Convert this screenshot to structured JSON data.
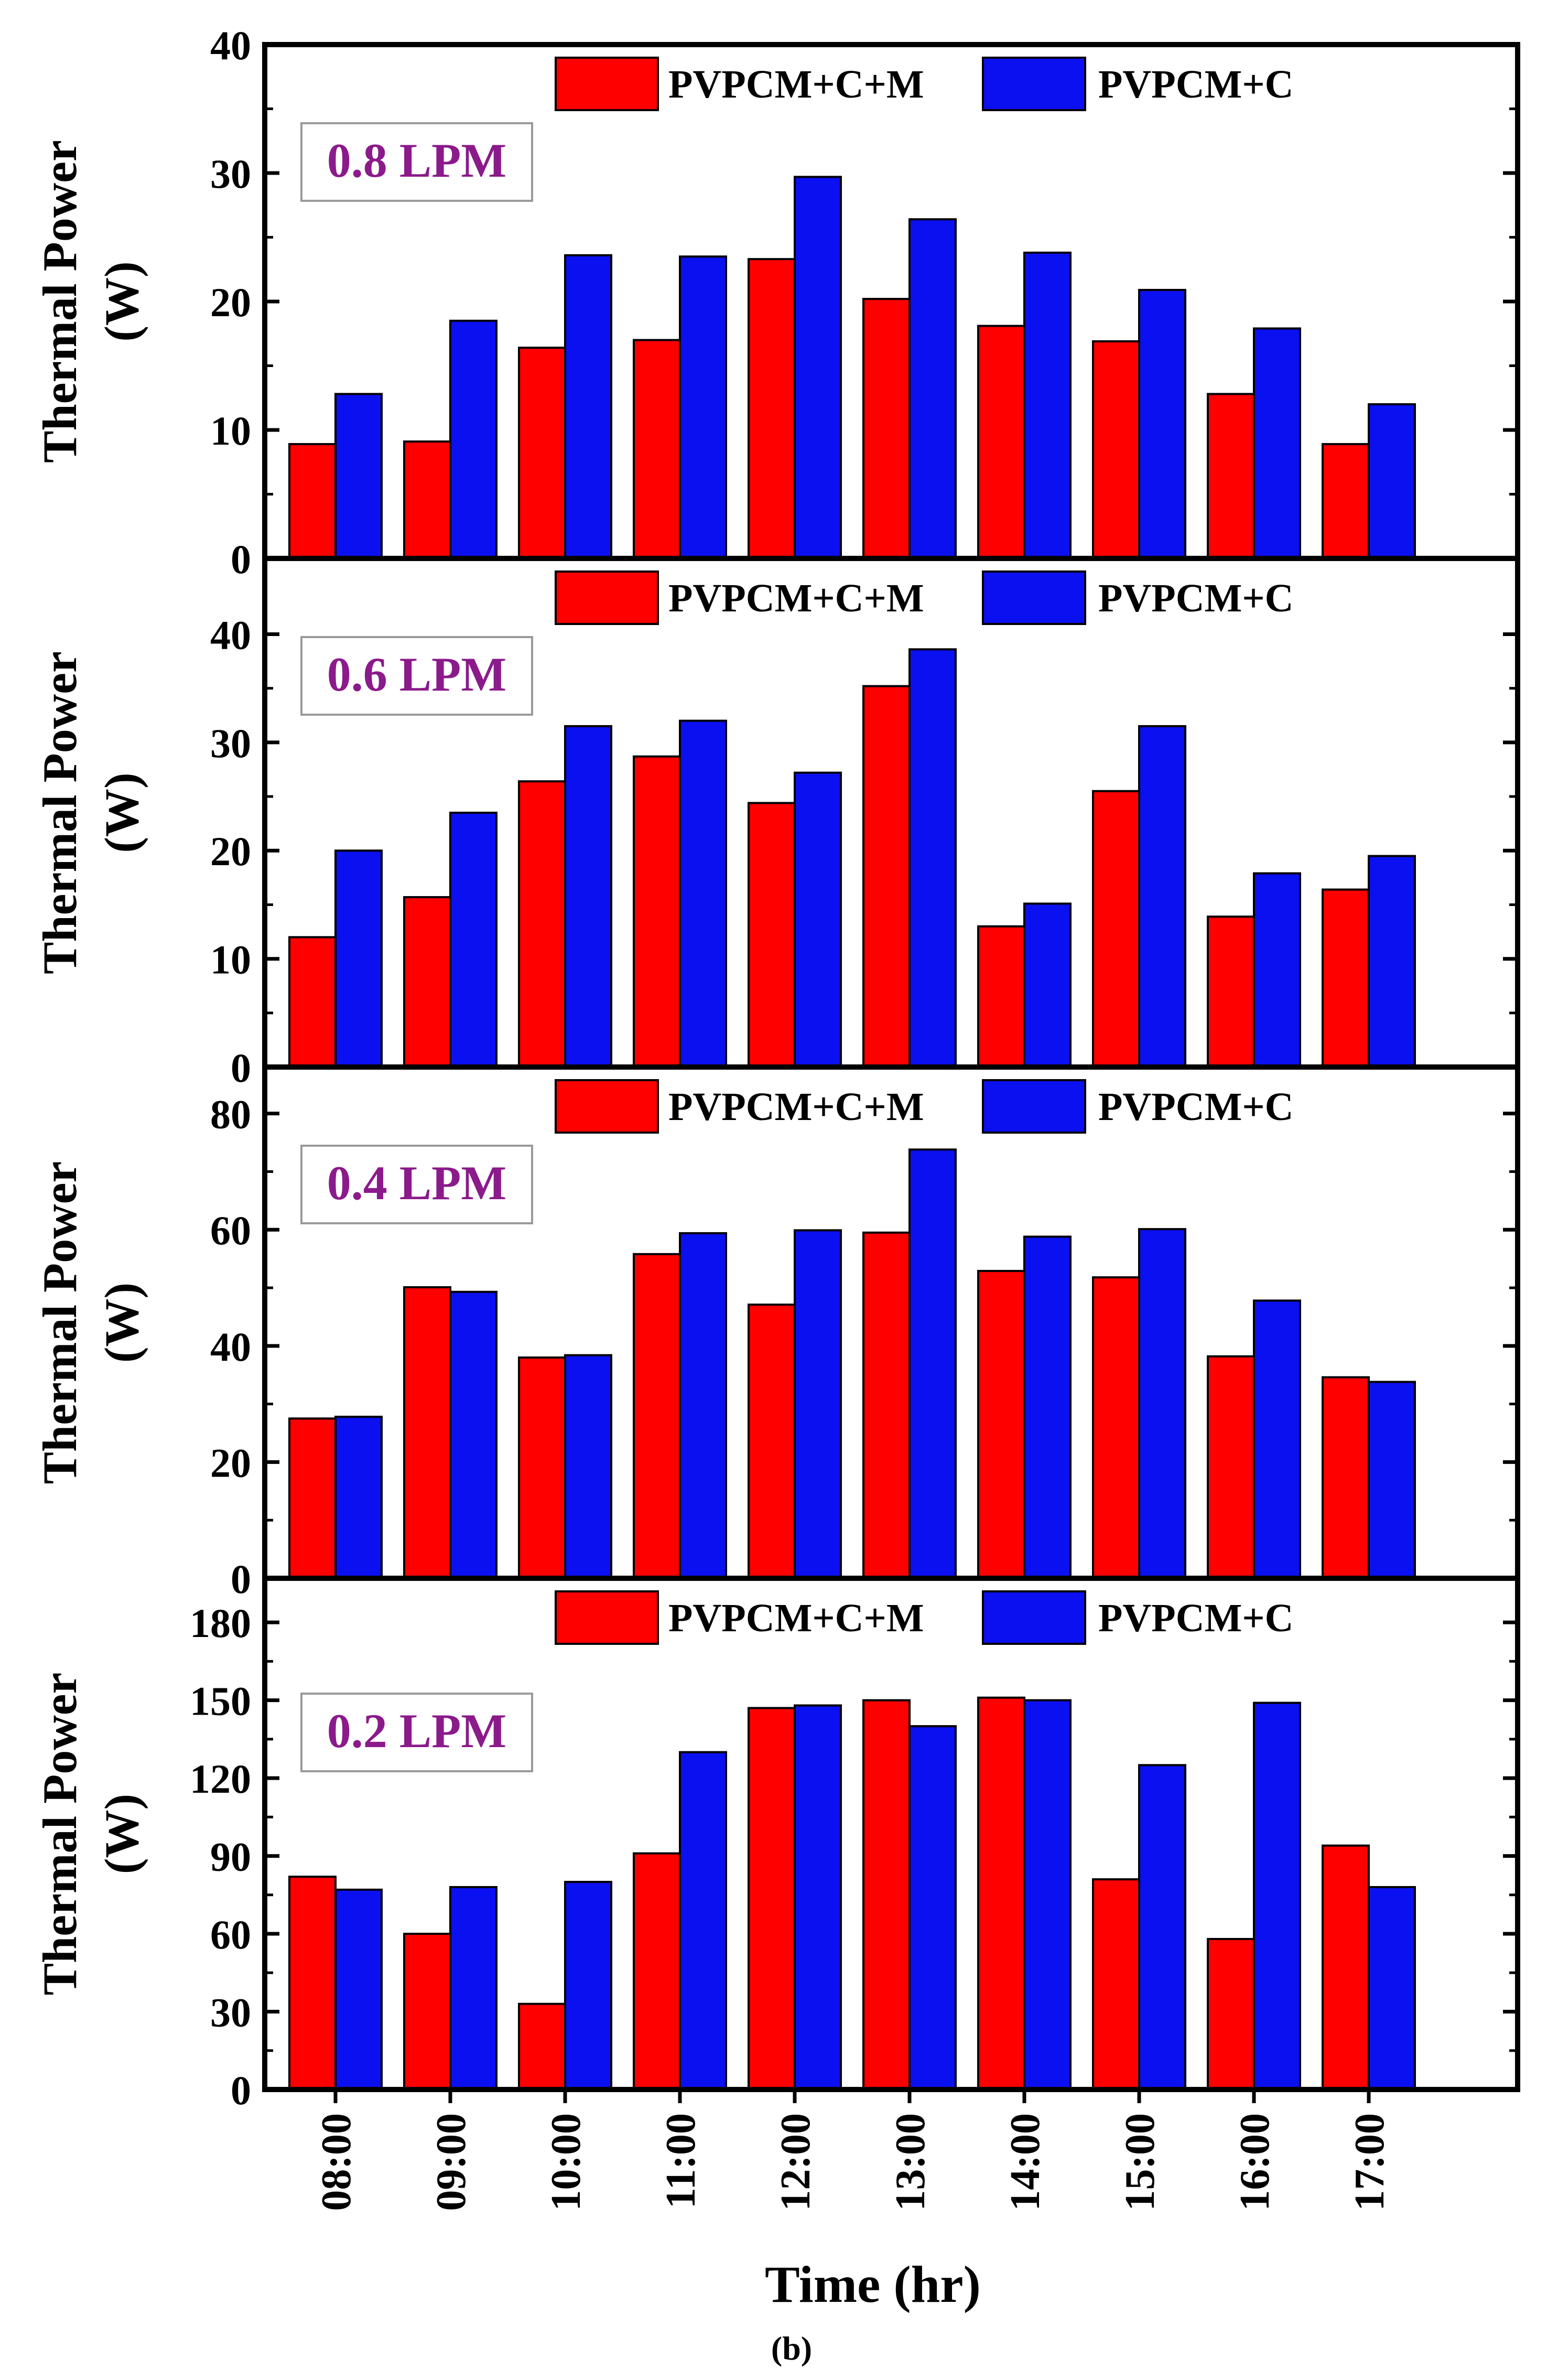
{
  "figure_label": "(b)",
  "x_axis_title": "Time (hr)",
  "colors": {
    "series_a": "#ff0000",
    "series_b": "#0b10f0",
    "flow_label": "#8b1a8b"
  },
  "chart_data": [
    {
      "type": "bar",
      "flow_label": "0.8 LPM",
      "ylabel": "Thermal Power (W)",
      "ylabel_lines": [
        "Thermal Power",
        "(W)"
      ],
      "ylim": [
        0,
        40
      ],
      "yticks": [
        0,
        10,
        20,
        30,
        40
      ],
      "categories": [
        "08:00",
        "09:00",
        "10:00",
        "11:00",
        "12:00",
        "13:00",
        "14:00",
        "15:00",
        "16:00",
        "17:00"
      ],
      "series": [
        {
          "name": "PVPCM+C+M",
          "values": [
            8.9,
            9.1,
            16.4,
            17.0,
            23.3,
            20.2,
            18.1,
            16.9,
            12.8,
            8.9
          ]
        },
        {
          "name": "PVPCM+C",
          "values": [
            12.8,
            18.5,
            23.6,
            23.5,
            29.7,
            26.4,
            23.8,
            20.9,
            17.9,
            12.0
          ]
        }
      ]
    },
    {
      "type": "bar",
      "flow_label": "0.6 LPM",
      "ylabel": "Thermal Power (W)",
      "ylabel_lines": [
        "Thermal Power",
        "(W)"
      ],
      "ylim": [
        0,
        47
      ],
      "yticks": [
        0,
        10,
        20,
        30,
        40
      ],
      "categories": [
        "08:00",
        "09:00",
        "10:00",
        "11:00",
        "12:00",
        "13:00",
        "14:00",
        "15:00",
        "16:00",
        "17:00"
      ],
      "series": [
        {
          "name": "PVPCM+C+M",
          "values": [
            12.0,
            15.7,
            26.4,
            28.7,
            24.4,
            35.2,
            13.0,
            25.5,
            13.9,
            16.4
          ]
        },
        {
          "name": "PVPCM+C",
          "values": [
            20.0,
            23.5,
            31.5,
            32.0,
            27.2,
            38.6,
            15.1,
            31.5,
            17.9,
            19.5
          ]
        }
      ]
    },
    {
      "type": "bar",
      "flow_label": "0.4 LPM",
      "ylabel": "Thermal Power (W)",
      "ylabel_lines": [
        "Thermal Power",
        "(W)"
      ],
      "ylim": [
        0,
        88
      ],
      "yticks": [
        0,
        20,
        40,
        60,
        80
      ],
      "categories": [
        "08:00",
        "09:00",
        "10:00",
        "11:00",
        "12:00",
        "13:00",
        "14:00",
        "15:00",
        "16:00",
        "17:00"
      ],
      "series": [
        {
          "name": "PVPCM+C+M",
          "values": [
            27.5,
            50.1,
            38.0,
            55.8,
            47.1,
            59.5,
            52.9,
            51.8,
            38.2,
            34.6
          ]
        },
        {
          "name": "PVPCM+C",
          "values": [
            27.8,
            49.3,
            38.4,
            59.4,
            59.9,
            73.8,
            58.8,
            60.1,
            47.8,
            33.8
          ]
        }
      ]
    },
    {
      "type": "bar",
      "flow_label": "0.2 LPM",
      "ylabel": "Thermal Power (W)",
      "ylabel_lines": [
        "Thermal Power",
        "(W)"
      ],
      "ylim": [
        0,
        197
      ],
      "yticks": [
        0,
        30,
        60,
        90,
        120,
        150,
        180
      ],
      "categories": [
        "08:00",
        "09:00",
        "10:00",
        "11:00",
        "12:00",
        "13:00",
        "14:00",
        "15:00",
        "16:00",
        "17:00"
      ],
      "series": [
        {
          "name": "PVPCM+C+M",
          "values": [
            82,
            60,
            33,
            91,
            147,
            150,
            151,
            81,
            58,
            94
          ]
        },
        {
          "name": "PVPCM+C",
          "values": [
            77,
            78,
            80,
            130,
            148,
            140,
            150,
            125,
            149,
            78
          ]
        }
      ]
    }
  ]
}
